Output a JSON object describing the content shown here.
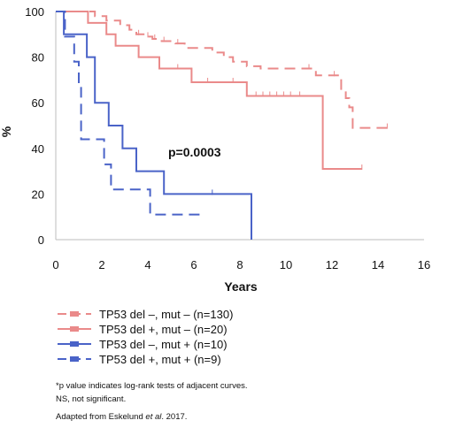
{
  "chart_data": {
    "type": "line",
    "ylabel": "%",
    "xlabel": "Years",
    "xlim": [
      0,
      16
    ],
    "ylim": [
      0,
      100
    ],
    "x_ticks": [
      "0",
      "2",
      "4",
      "6",
      "8",
      "10",
      "12",
      "14",
      "16"
    ],
    "y_ticks": [
      "0",
      "20",
      "40",
      "60",
      "80",
      "100"
    ],
    "annotation": "p=0.0003",
    "legend_position": "bottom-left",
    "series": [
      {
        "name": "TP53 del –, mut – (n=130)",
        "color": "#ea8a8a",
        "dash": "long-dash",
        "x": [
          0,
          1.7,
          1.7,
          2.2,
          2.2,
          2.8,
          2.8,
          3.2,
          3.2,
          3.5,
          3.5,
          3.9,
          3.9,
          4.2,
          4.2,
          4.6,
          4.6,
          5.2,
          5.2,
          5.6,
          5.6,
          6.8,
          6.8,
          7.3,
          7.3,
          7.7,
          7.7,
          8.3,
          8.3,
          8.9,
          8.9,
          11.3,
          11.3,
          12.4,
          12.4,
          12.6,
          12.6,
          12.75,
          12.75,
          12.9,
          12.9,
          14.5
        ],
        "y": [
          100,
          100,
          98,
          98,
          96,
          96,
          94,
          94,
          92,
          92,
          90,
          90,
          89,
          89,
          88,
          88,
          87,
          87,
          86,
          86,
          84,
          84,
          82,
          82,
          80,
          80,
          78,
          78,
          76,
          76,
          75,
          75,
          72,
          72,
          65,
          65,
          62,
          62,
          58,
          58,
          49,
          49
        ],
        "censor_x": [
          3.6,
          4.0,
          4.3,
          4.7,
          5.3,
          11.0,
          12.1,
          14.4
        ]
      },
      {
        "name": "TP53 del +, mut – (n=20)",
        "color": "#ea8a8a",
        "dash": "solid",
        "x": [
          0,
          1.4,
          1.4,
          2.2,
          2.2,
          2.6,
          2.6,
          3.6,
          3.6,
          4.5,
          4.5,
          5.9,
          5.9,
          8.3,
          8.3,
          11.6,
          11.6,
          13.3
        ],
        "y": [
          100,
          100,
          95,
          95,
          90,
          90,
          85,
          85,
          80,
          80,
          75,
          75,
          69,
          69,
          63,
          63,
          31,
          31
        ],
        "censor_x": [
          5.3,
          6.6,
          7.7,
          8.7,
          9.0,
          9.3,
          9.6,
          9.9,
          10.2,
          10.6,
          13.3
        ]
      },
      {
        "name": "TP53 del –, mut + (n=10)",
        "color": "#4a63c8",
        "dash": "solid",
        "x": [
          0,
          0.35,
          0.35,
          0.55,
          0.55,
          1.35,
          1.35,
          1.7,
          1.7,
          2.3,
          2.3,
          2.9,
          2.9,
          3.5,
          3.5,
          4.7,
          4.7,
          8.5,
          8.5
        ],
        "y": [
          100,
          100,
          90,
          90,
          90,
          90,
          80,
          80,
          60,
          60,
          50,
          50,
          40,
          40,
          30,
          30,
          20,
          20,
          0
        ],
        "censor_x": [
          6.8
        ]
      },
      {
        "name": "TP53 del +, mut + (n=9)",
        "color": "#4a63c8",
        "dash": "long-dash",
        "x": [
          0,
          0.4,
          0.4,
          0.8,
          0.8,
          1.0,
          1.0,
          1.1,
          1.1,
          2.1,
          2.1,
          2.4,
          2.4,
          4.1,
          4.1,
          6.5
        ],
        "y": [
          100,
          100,
          89,
          89,
          78,
          78,
          67,
          67,
          44,
          44,
          33,
          33,
          22,
          22,
          11,
          11
        ],
        "censor_x": []
      }
    ]
  },
  "notes": {
    "line1": "*p value indicates log-rank tests of adjacent curves.",
    "line2": "NS, not significant.",
    "source_prefix": "Adapted from Eskelund ",
    "source_italic": "et al",
    "source_suffix": ". 2017."
  }
}
